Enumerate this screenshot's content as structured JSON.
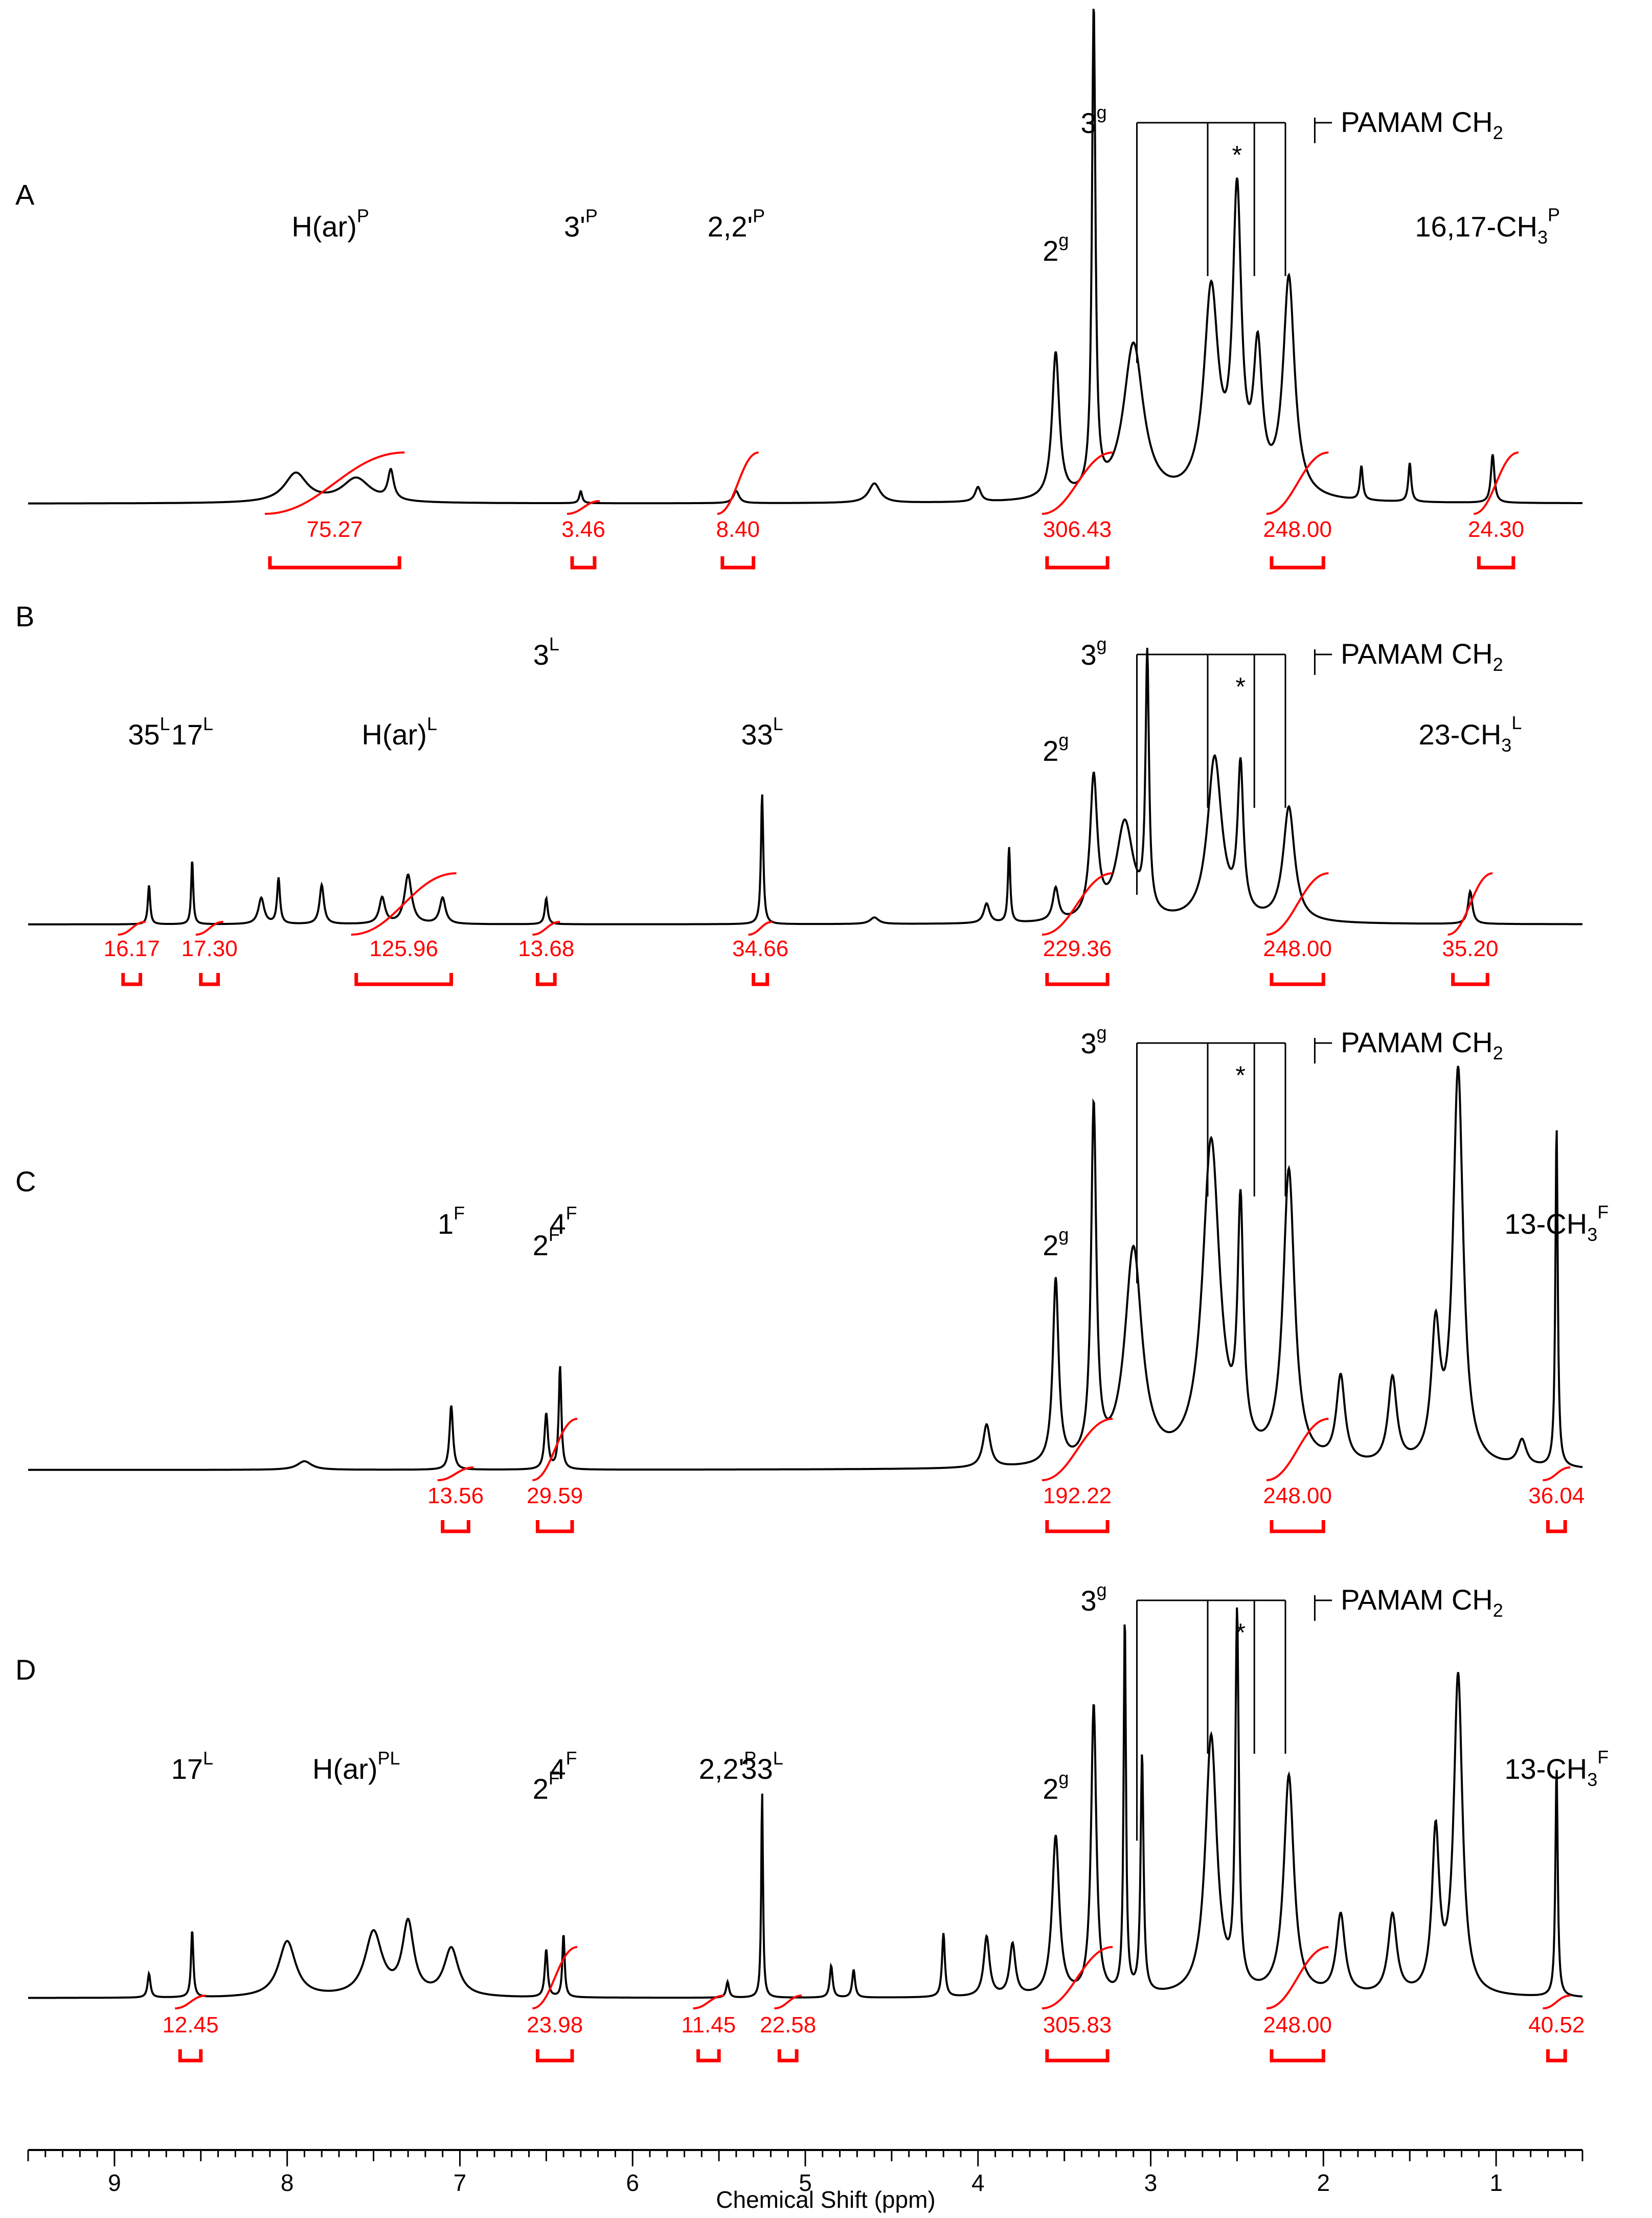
{
  "colors": {
    "spectrum": "#000000",
    "integral": "#ff0000",
    "annotation": "#000000"
  },
  "chart_data": {
    "type": "line",
    "title": "",
    "xlabel": "Chemical Shift (ppm)",
    "xlim": [
      9.5,
      0.5
    ],
    "x_reversed": true,
    "grid": false,
    "legend": "none",
    "x_ticks": [
      "9",
      "8",
      "7",
      "6",
      "5",
      "4",
      "3",
      "2",
      "1"
    ],
    "panels": [
      {
        "label": "A",
        "integrals": [
          {
            "value": "75.27",
            "range": [
              8.1,
              7.35
            ]
          },
          {
            "value": "3.46",
            "range": [
              6.35,
              6.22
            ]
          },
          {
            "value": "8.40",
            "range": [
              5.48,
              5.3
            ]
          },
          {
            "value": "306.43",
            "range": [
              3.6,
              3.25
            ]
          },
          {
            "value": "248.00",
            "range": [
              2.3,
              2.0
            ]
          },
          {
            "value": "24.30",
            "range": [
              1.1,
              0.9
            ]
          }
        ],
        "annotations": [
          {
            "text": "H(ar)",
            "sup": "P",
            "x": 7.75
          },
          {
            "text": "3'",
            "sup": "P",
            "x": 6.3
          },
          {
            "text": "2,2'",
            "sup": "P",
            "x": 5.4
          },
          {
            "text": "2",
            "sup": "g",
            "x": 3.55
          },
          {
            "text": "3",
            "sup": "g",
            "x": 3.33
          },
          {
            "text": "16,17-CH",
            "sub": "3",
            "sup": "P",
            "x": 1.05
          },
          {
            "text": "*",
            "x": 2.5
          },
          {
            "text": "PAMAM CH",
            "sub": "2"
          }
        ],
        "peaks": [
          {
            "x": 3.33,
            "h": 1.0,
            "w": 0.012
          },
          {
            "x": 3.55,
            "h": 0.3,
            "w": 0.025
          },
          {
            "x": 3.1,
            "h": 0.32,
            "w": 0.07
          },
          {
            "x": 2.65,
            "h": 0.42,
            "w": 0.05
          },
          {
            "x": 2.5,
            "h": 0.6,
            "w": 0.03
          },
          {
            "x": 2.38,
            "h": 0.28,
            "w": 0.03
          },
          {
            "x": 2.2,
            "h": 0.45,
            "w": 0.04
          },
          {
            "x": 1.78,
            "h": 0.07,
            "w": 0.01
          },
          {
            "x": 1.5,
            "h": 0.08,
            "w": 0.01
          },
          {
            "x": 1.02,
            "h": 0.1,
            "w": 0.012
          },
          {
            "x": 7.95,
            "h": 0.06,
            "w": 0.08
          },
          {
            "x": 7.6,
            "h": 0.05,
            "w": 0.1
          },
          {
            "x": 7.4,
            "h": 0.06,
            "w": 0.02
          },
          {
            "x": 4.6,
            "h": 0.04,
            "w": 0.04
          },
          {
            "x": 4.0,
            "h": 0.03,
            "w": 0.02
          },
          {
            "x": 6.3,
            "h": 0.025,
            "w": 0.01
          },
          {
            "x": 5.4,
            "h": 0.025,
            "w": 0.02
          }
        ]
      },
      {
        "label": "B",
        "integrals": [
          {
            "value": "16.17",
            "range": [
              8.95,
              8.85
            ]
          },
          {
            "value": "17.30",
            "range": [
              8.5,
              8.4
            ]
          },
          {
            "value": "125.96",
            "range": [
              7.6,
              7.05
            ]
          },
          {
            "value": "13.68",
            "range": [
              6.55,
              6.45
            ]
          },
          {
            "value": "34.66",
            "range": [
              5.3,
              5.22
            ]
          },
          {
            "value": "229.36",
            "range": [
              3.6,
              3.25
            ]
          },
          {
            "value": "248.00",
            "range": [
              2.3,
              2.0
            ]
          },
          {
            "value": "35.20",
            "range": [
              1.25,
              1.05
            ]
          }
        ],
        "annotations": [
          {
            "text": "35",
            "sup": "L",
            "x": 8.8
          },
          {
            "text": "17",
            "sup": "L",
            "x": 8.55
          },
          {
            "text": "H(ar)",
            "sup": "L",
            "x": 7.35
          },
          {
            "text": "3",
            "sup": "L",
            "x": 6.5
          },
          {
            "text": "33",
            "sup": "L",
            "x": 5.25
          },
          {
            "text": "2",
            "sup": "g",
            "x": 3.55
          },
          {
            "text": "3",
            "sup": "g",
            "x": 3.33
          },
          {
            "text": "23-CH",
            "sub": "3",
            "sup": "L",
            "x": 1.15
          },
          {
            "text": "*",
            "x": 2.48
          },
          {
            "text": "PAMAM CH",
            "sub": "2"
          }
        ],
        "peaks": [
          {
            "x": 3.02,
            "h": 0.78,
            "w": 0.012
          },
          {
            "x": 3.33,
            "h": 0.43,
            "w": 0.025
          },
          {
            "x": 3.15,
            "h": 0.3,
            "w": 0.06
          },
          {
            "x": 2.63,
            "h": 0.5,
            "w": 0.05
          },
          {
            "x": 2.48,
            "h": 0.45,
            "w": 0.02
          },
          {
            "x": 2.2,
            "h": 0.35,
            "w": 0.04
          },
          {
            "x": 3.55,
            "h": 0.1,
            "w": 0.02
          },
          {
            "x": 3.82,
            "h": 0.23,
            "w": 0.008
          },
          {
            "x": 3.95,
            "h": 0.06,
            "w": 0.02
          },
          {
            "x": 5.25,
            "h": 0.4,
            "w": 0.008
          },
          {
            "x": 8.8,
            "h": 0.12,
            "w": 0.008
          },
          {
            "x": 8.55,
            "h": 0.2,
            "w": 0.007
          },
          {
            "x": 8.15,
            "h": 0.08,
            "w": 0.02
          },
          {
            "x": 8.05,
            "h": 0.14,
            "w": 0.01
          },
          {
            "x": 7.8,
            "h": 0.12,
            "w": 0.015
          },
          {
            "x": 7.45,
            "h": 0.08,
            "w": 0.02
          },
          {
            "x": 7.3,
            "h": 0.15,
            "w": 0.025
          },
          {
            "x": 7.1,
            "h": 0.08,
            "w": 0.02
          },
          {
            "x": 6.5,
            "h": 0.08,
            "w": 0.01
          },
          {
            "x": 1.15,
            "h": 0.1,
            "w": 0.015
          },
          {
            "x": 4.6,
            "h": 0.02,
            "w": 0.03
          }
        ]
      },
      {
        "label": "C",
        "integrals": [
          {
            "value": "13.56",
            "range": [
              7.1,
              6.95
            ]
          },
          {
            "value": "29.59",
            "range": [
              6.55,
              6.35
            ]
          },
          {
            "value": "192.22",
            "range": [
              3.6,
              3.25
            ]
          },
          {
            "value": "248.00",
            "range": [
              2.3,
              2.0
            ]
          },
          {
            "value": "36.04",
            "range": [
              0.7,
              0.6
            ]
          }
        ],
        "annotations": [
          {
            "text": "1",
            "sup": "F",
            "x": 7.05
          },
          {
            "text": "2",
            "sup": "F",
            "x": 6.5
          },
          {
            "text": "4",
            "sup": "F",
            "x": 6.4
          },
          {
            "text": "2",
            "sup": "g",
            "x": 3.55
          },
          {
            "text": "3",
            "sup": "g",
            "x": 3.33
          },
          {
            "text": "13-CH",
            "sub": "3",
            "sup": "F",
            "x": 0.65
          },
          {
            "text": "*",
            "x": 2.48
          },
          {
            "text": "PAMAM CH",
            "sub": "2"
          }
        ],
        "peaks": [
          {
            "x": 3.33,
            "h": 0.82,
            "w": 0.018
          },
          {
            "x": 3.55,
            "h": 0.43,
            "w": 0.02
          },
          {
            "x": 3.1,
            "h": 0.5,
            "w": 0.06
          },
          {
            "x": 2.65,
            "h": 0.75,
            "w": 0.06
          },
          {
            "x": 2.48,
            "h": 0.55,
            "w": 0.02
          },
          {
            "x": 2.2,
            "h": 0.68,
            "w": 0.04
          },
          {
            "x": 1.22,
            "h": 0.92,
            "w": 0.035
          },
          {
            "x": 1.35,
            "h": 0.3,
            "w": 0.03
          },
          {
            "x": 1.6,
            "h": 0.2,
            "w": 0.03
          },
          {
            "x": 1.9,
            "h": 0.2,
            "w": 0.03
          },
          {
            "x": 0.65,
            "h": 0.8,
            "w": 0.008
          },
          {
            "x": 0.85,
            "h": 0.06,
            "w": 0.03
          },
          {
            "x": 3.95,
            "h": 0.1,
            "w": 0.025
          },
          {
            "x": 7.05,
            "h": 0.15,
            "w": 0.012
          },
          {
            "x": 6.5,
            "h": 0.13,
            "w": 0.012
          },
          {
            "x": 6.42,
            "h": 0.24,
            "w": 0.009
          },
          {
            "x": 7.9,
            "h": 0.02,
            "w": 0.05
          }
        ]
      },
      {
        "label": "D",
        "integrals": [
          {
            "value": "12.45",
            "range": [
              8.62,
              8.5
            ]
          },
          {
            "value": "23.98",
            "range": [
              6.55,
              6.35
            ]
          },
          {
            "value": "11.45",
            "range": [
              5.62,
              5.5
            ]
          },
          {
            "value": "22.58",
            "range": [
              5.15,
              5.05
            ]
          },
          {
            "value": "305.83",
            "range": [
              3.6,
              3.25
            ]
          },
          {
            "value": "248.00",
            "range": [
              2.3,
              2.0
            ]
          },
          {
            "value": "40.52",
            "range": [
              0.7,
              0.6
            ]
          }
        ],
        "annotations": [
          {
            "text": "17",
            "sup": "L",
            "x": 8.55
          },
          {
            "text": "H(ar)",
            "sup": "PL",
            "x": 7.6
          },
          {
            "text": "2",
            "sup": "F",
            "x": 6.5
          },
          {
            "text": "4",
            "sup": "F",
            "x": 6.4
          },
          {
            "text": "2,2'",
            "sup": "P",
            "x": 5.45
          },
          {
            "text": "33",
            "sup": "L",
            "x": 5.25
          },
          {
            "text": "2",
            "sup": "g",
            "x": 3.55
          },
          {
            "text": "3",
            "sup": "g",
            "x": 3.33
          },
          {
            "text": "13-CH",
            "sub": "3",
            "sup": "F",
            "x": 0.65
          },
          {
            "text": "*",
            "x": 2.48
          },
          {
            "text": "PAMAM CH",
            "sub": "2"
          }
        ],
        "peaks": [
          {
            "x": 3.15,
            "h": 0.95,
            "w": 0.008
          },
          {
            "x": 3.05,
            "h": 0.6,
            "w": 0.01
          },
          {
            "x": 3.33,
            "h": 0.73,
            "w": 0.018
          },
          {
            "x": 3.55,
            "h": 0.4,
            "w": 0.025
          },
          {
            "x": 2.65,
            "h": 0.65,
            "w": 0.04
          },
          {
            "x": 2.5,
            "h": 0.93,
            "w": 0.012
          },
          {
            "x": 2.2,
            "h": 0.55,
            "w": 0.035
          },
          {
            "x": 1.22,
            "h": 0.8,
            "w": 0.03
          },
          {
            "x": 1.35,
            "h": 0.4,
            "w": 0.025
          },
          {
            "x": 1.6,
            "h": 0.2,
            "w": 0.03
          },
          {
            "x": 1.9,
            "h": 0.2,
            "w": 0.03
          },
          {
            "x": 0.65,
            "h": 0.58,
            "w": 0.008
          },
          {
            "x": 5.25,
            "h": 0.52,
            "w": 0.006
          },
          {
            "x": 8.55,
            "h": 0.17,
            "w": 0.008
          },
          {
            "x": 8.8,
            "h": 0.06,
            "w": 0.01
          },
          {
            "x": 8.0,
            "h": 0.14,
            "w": 0.06
          },
          {
            "x": 7.5,
            "h": 0.16,
            "w": 0.06
          },
          {
            "x": 7.3,
            "h": 0.18,
            "w": 0.04
          },
          {
            "x": 7.05,
            "h": 0.12,
            "w": 0.05
          },
          {
            "x": 6.5,
            "h": 0.12,
            "w": 0.01
          },
          {
            "x": 6.4,
            "h": 0.16,
            "w": 0.008
          },
          {
            "x": 4.2,
            "h": 0.16,
            "w": 0.01
          },
          {
            "x": 3.95,
            "h": 0.15,
            "w": 0.02
          },
          {
            "x": 3.8,
            "h": 0.13,
            "w": 0.02
          },
          {
            "x": 4.85,
            "h": 0.08,
            "w": 0.01
          },
          {
            "x": 4.72,
            "h": 0.07,
            "w": 0.01
          },
          {
            "x": 5.45,
            "h": 0.04,
            "w": 0.01
          }
        ]
      }
    ]
  }
}
